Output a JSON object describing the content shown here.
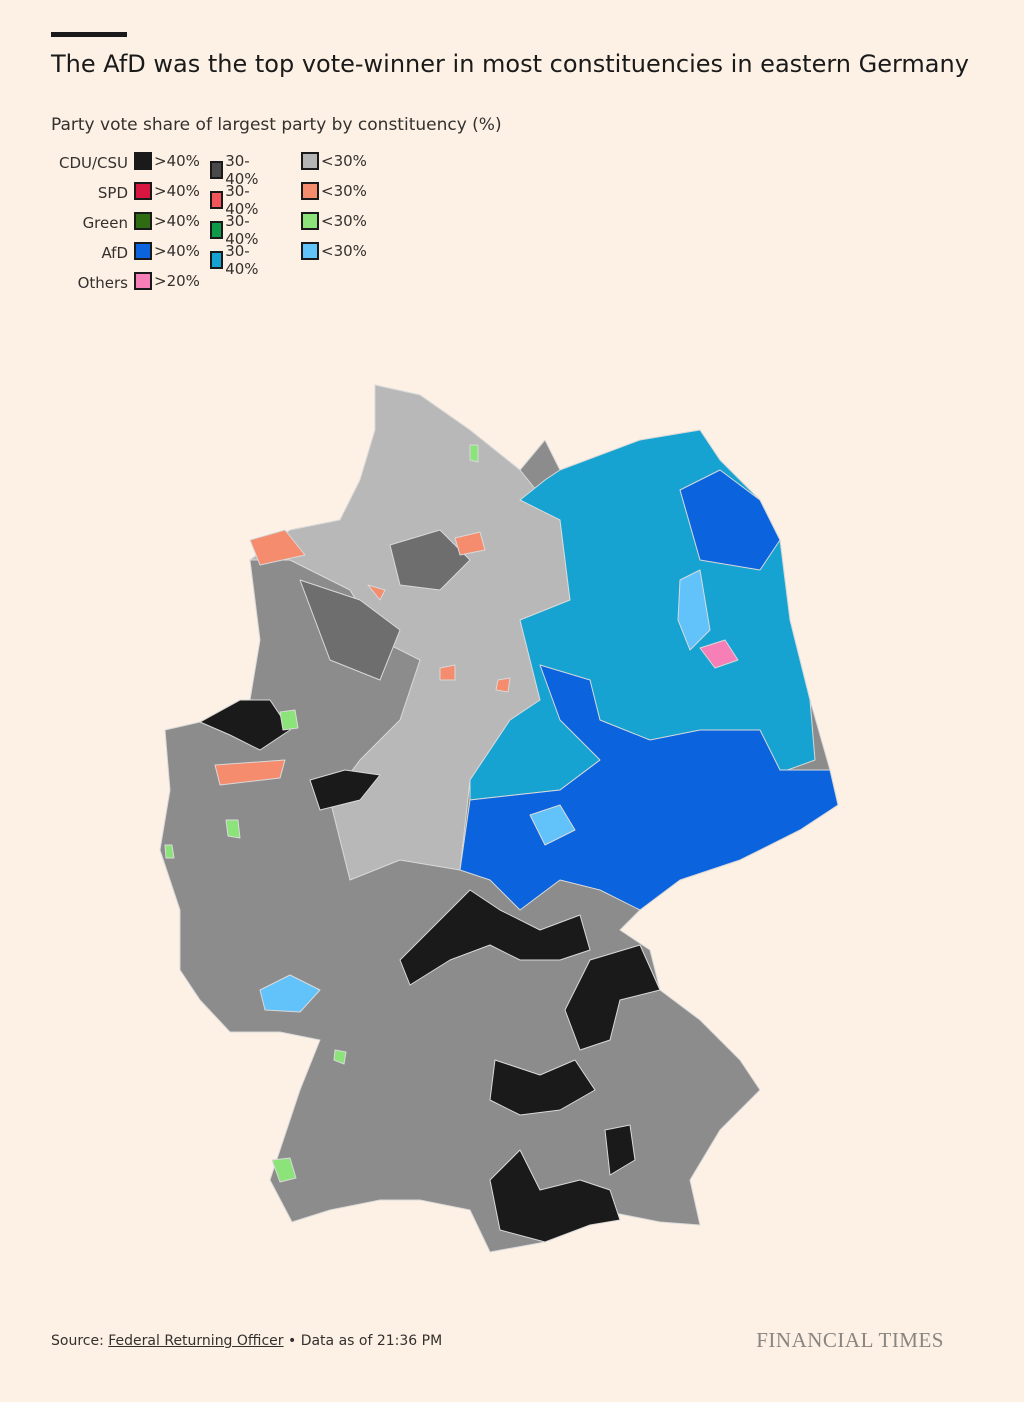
{
  "header": {
    "title": "The AfD was the top vote-winner in most constituencies in eastern Germany",
    "subtitle": "Party vote share of largest party by constituency (%)"
  },
  "legend": {
    "rows": [
      {
        "party": "CDU/CSU",
        "items": [
          {
            "label": ">40%",
            "color": "#1a1a1a"
          },
          {
            "label": "30-40%",
            "color": "#4a4a4a"
          },
          {
            "label": "<30%",
            "color": "#b5b5b5"
          }
        ]
      },
      {
        "party": "SPD",
        "items": [
          {
            "label": ">40%",
            "color": "#d8163f"
          },
          {
            "label": "30-40%",
            "color": "#f2555a"
          },
          {
            "label": "<30%",
            "color": "#f58c6e"
          }
        ]
      },
      {
        "party": "Green",
        "items": [
          {
            "label": ">40%",
            "color": "#2e6b12"
          },
          {
            "label": "30-40%",
            "color": "#0f9a4a"
          },
          {
            "label": "<30%",
            "color": "#8be37a"
          }
        ]
      },
      {
        "party": "AfD",
        "items": [
          {
            "label": ">40%",
            "color": "#0b63dd"
          },
          {
            "label": "30-40%",
            "color": "#16a3d2"
          },
          {
            "label": "<30%",
            "color": "#62c3fb"
          }
        ]
      },
      {
        "party": "Others",
        "items": [
          {
            "label": ">20%",
            "color": "#f57fb6"
          }
        ]
      }
    ]
  },
  "footer": {
    "source_label": "Source:",
    "source_link": "Federal Returning Officer",
    "data_note": "• Data as of 21:36 PM",
    "brand": "FINANCIAL TIMES"
  }
}
